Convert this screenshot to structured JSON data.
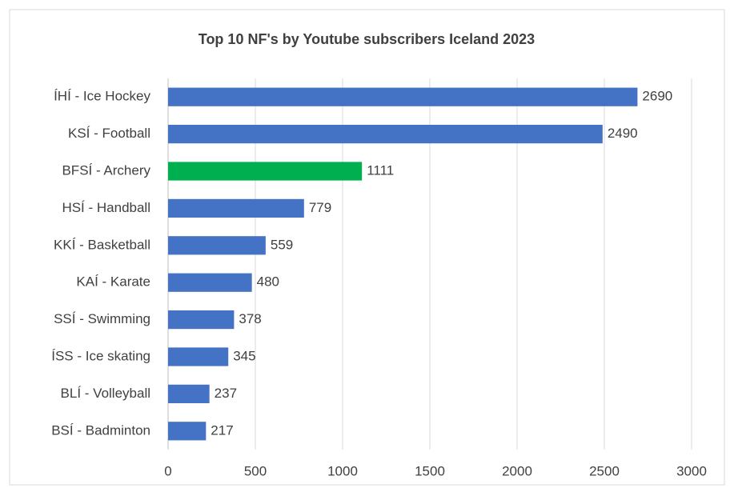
{
  "chart_data": {
    "type": "hbar",
    "title": "Top 10 NF's by Youtube subscribers Iceland 2023",
    "categories": [
      "ÍHÍ - Ice Hockey",
      "KSÍ - Football",
      "BFSÍ - Archery",
      "HSÍ - Handball",
      "KKÍ - Basketball",
      "KAÍ - Karate",
      "SSÍ - Swimming",
      "ÍSS - Ice skating",
      "BLÍ - Volleyball",
      "BSÍ - Badminton"
    ],
    "values": [
      2690,
      2490,
      1111,
      779,
      559,
      480,
      378,
      345,
      237,
      217
    ],
    "colors": [
      "#4472c4",
      "#4472c4",
      "#00b050",
      "#4472c4",
      "#4472c4",
      "#4472c4",
      "#4472c4",
      "#4472c4",
      "#4472c4",
      "#4472c4"
    ],
    "xlim": [
      0,
      3000
    ],
    "xticks": [
      0,
      500,
      1000,
      1500,
      2000,
      2500,
      3000
    ],
    "grid": true
  }
}
